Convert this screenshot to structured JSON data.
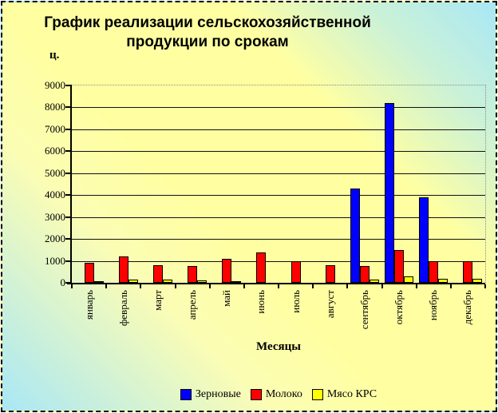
{
  "title_lines": [
    "График реализации сельскохозяйственной",
    "продукции по срокам"
  ],
  "chart_data": {
    "type": "bar",
    "title": "График реализации сельскохозяйственной продукции по срокам",
    "ylabel": "ц.",
    "xlabel": "Месяцы",
    "ylim": [
      0,
      9000
    ],
    "ytick_step": 1000,
    "grid": true,
    "legend_position": "bottom",
    "categories": [
      "январь",
      "февраль",
      "март",
      "апрель",
      "май",
      "июнь",
      "июль",
      "август",
      "сентябрь",
      "октябрь",
      "ноябрь",
      "декабрь"
    ],
    "series": [
      {
        "name": "Зерновые",
        "color": "#0000ff",
        "values": [
          0,
          0,
          0,
          0,
          0,
          0,
          0,
          0,
          4300,
          8200,
          3900,
          0
        ]
      },
      {
        "name": "Молоко",
        "color": "#ff0000",
        "values": [
          900,
          1200,
          800,
          750,
          1100,
          1400,
          1000,
          800,
          750,
          1500,
          1000,
          1000
        ]
      },
      {
        "name": "Мясо КРС",
        "color": "#ffff00",
        "values": [
          50,
          150,
          150,
          100,
          80,
          0,
          0,
          0,
          150,
          300,
          200,
          200
        ]
      }
    ]
  },
  "colors": {
    "background_yellow": "#ffffa2",
    "background_cyan": "#a9e7f6",
    "gridline": "#111111",
    "axis": "#000000",
    "text": "#000000"
  }
}
